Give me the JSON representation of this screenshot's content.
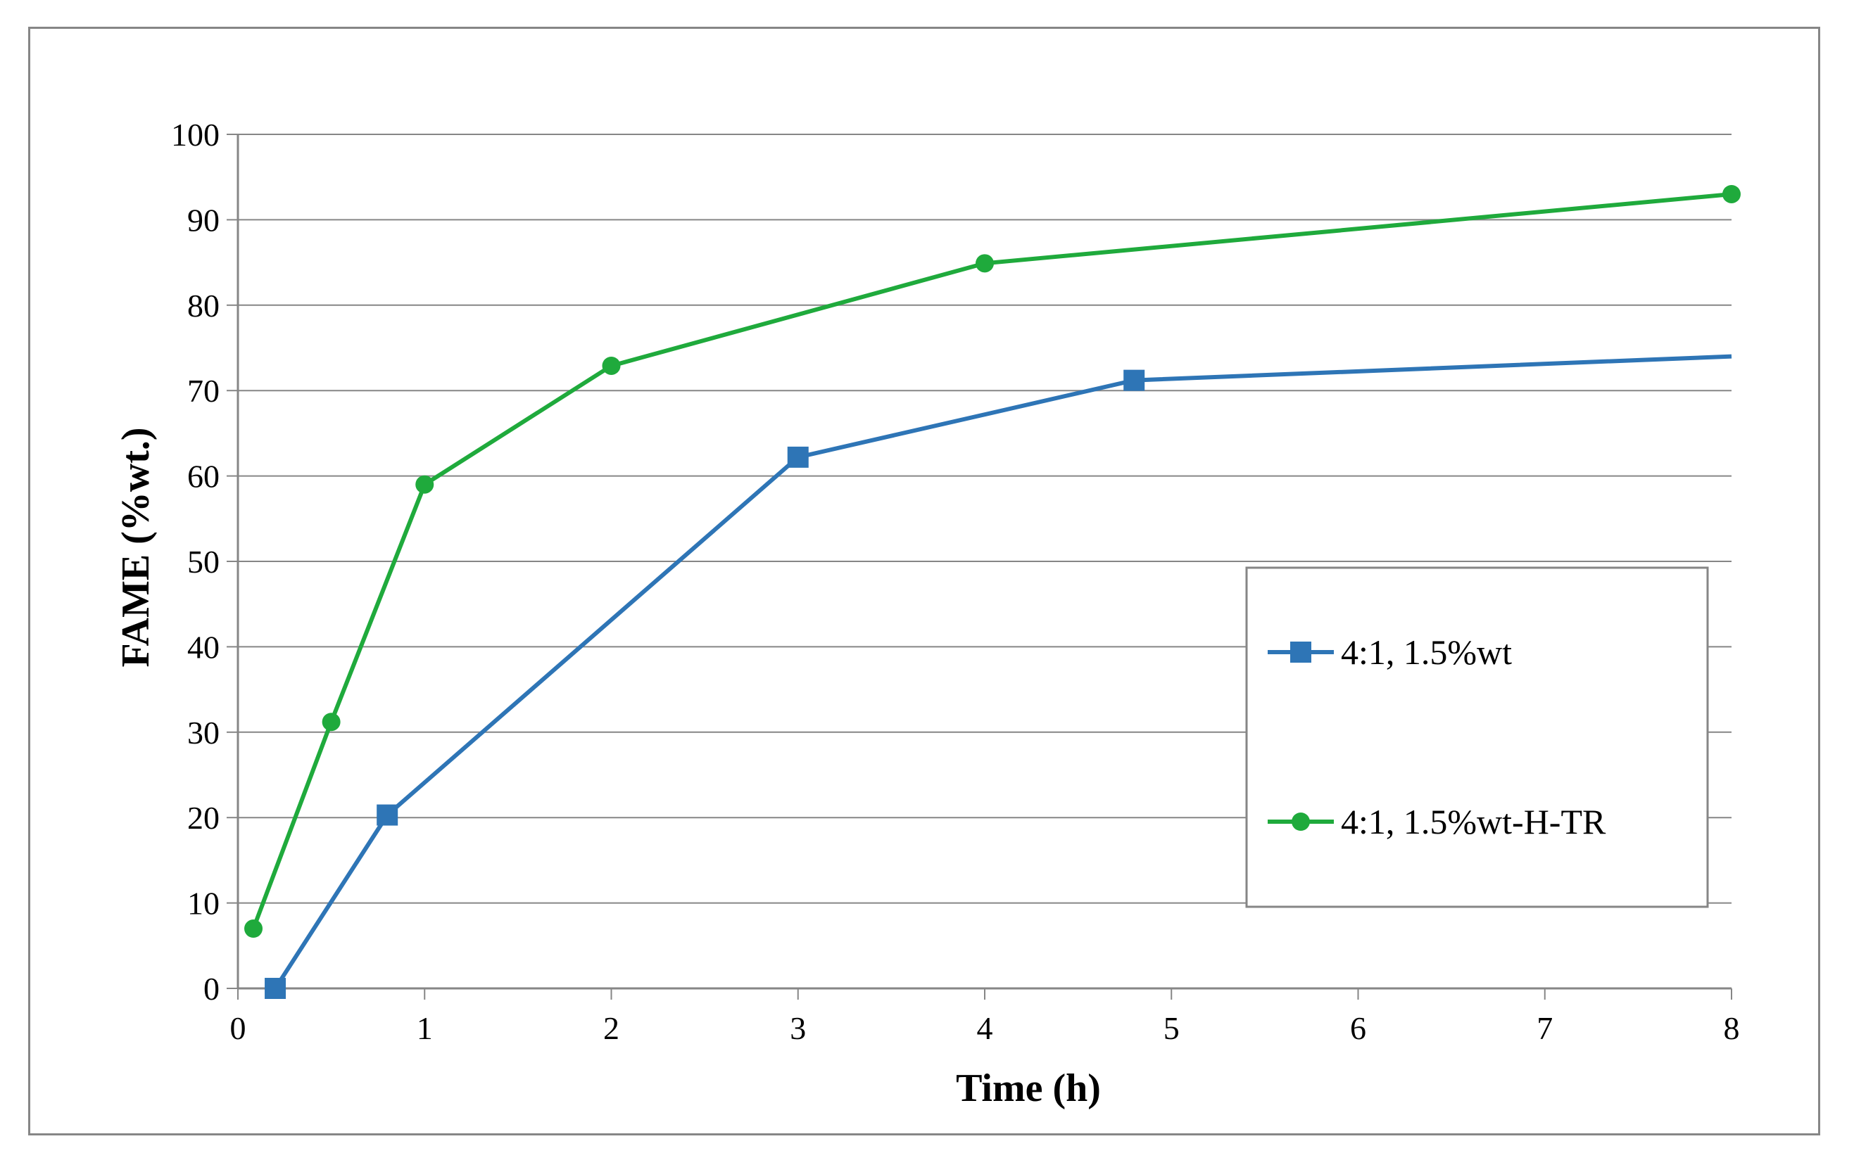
{
  "chart_data": {
    "type": "line",
    "title": "",
    "xlabel": "Time (h)",
    "ylabel": "FAME (%wt.)",
    "xlim": [
      0,
      8
    ],
    "ylim": [
      0,
      100
    ],
    "xticks": [
      0,
      1,
      2,
      3,
      4,
      5,
      6,
      7,
      8
    ],
    "yticks": [
      0,
      10,
      20,
      30,
      40,
      50,
      60,
      70,
      80,
      90,
      100
    ],
    "grid": true,
    "legend_position": "right",
    "series": [
      {
        "name": "4:1, 1.5%wt",
        "color": "#2E75B6",
        "marker": "square",
        "x": [
          0.2,
          0.8,
          3,
          4.8,
          8
        ],
        "y": [
          0,
          20.3,
          62.2,
          71.2,
          74
        ],
        "marked": [
          true,
          true,
          true,
          true,
          false
        ]
      },
      {
        "name": "4:1, 1.5%wt-H-TR",
        "color": "#1FAA3C",
        "marker": "circle",
        "x": [
          0.083,
          0.5,
          1,
          2,
          4,
          8
        ],
        "y": [
          7,
          31.2,
          59,
          72.9,
          84.9,
          93
        ],
        "marked": [
          true,
          true,
          true,
          true,
          true,
          true
        ]
      }
    ]
  }
}
